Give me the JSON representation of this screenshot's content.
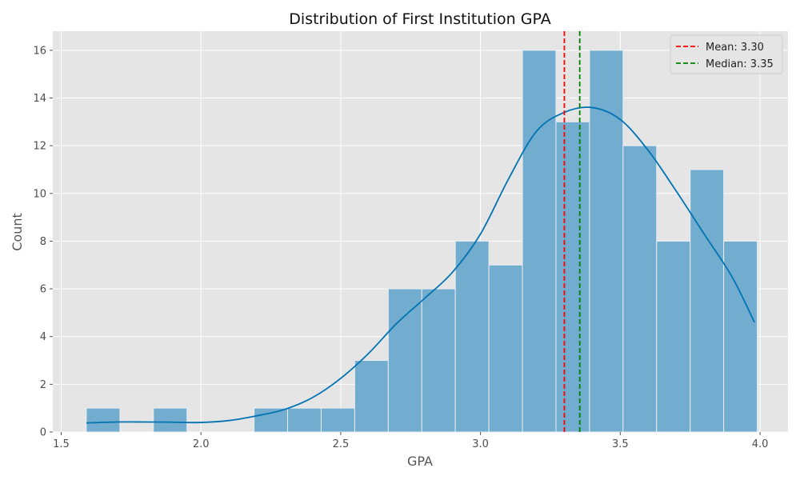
{
  "chart_data": {
    "type": "bar",
    "title": "Distribution of First Institution GPA",
    "xlabel": "GPA",
    "ylabel": "Count",
    "xlim": [
      1.47,
      4.1
    ],
    "ylim": [
      0,
      16.8
    ],
    "xticks": [
      1.5,
      2.0,
      2.5,
      3.0,
      3.5,
      4.0
    ],
    "xtick_labels": [
      "1.5",
      "2.0",
      "2.5",
      "3.0",
      "3.5",
      "4.0"
    ],
    "yticks": [
      0,
      2,
      4,
      6,
      8,
      10,
      12,
      14,
      16
    ],
    "ytick_labels": [
      "0",
      "2",
      "4",
      "6",
      "8",
      "10",
      "12",
      "14",
      "16"
    ],
    "grid": true,
    "bins": [
      {
        "x0": 1.59,
        "x1": 1.71,
        "count": 1
      },
      {
        "x0": 1.71,
        "x1": 1.83,
        "count": 0
      },
      {
        "x0": 1.83,
        "x1": 1.95,
        "count": 1
      },
      {
        "x0": 1.95,
        "x1": 2.07,
        "count": 0
      },
      {
        "x0": 2.07,
        "x1": 2.19,
        "count": 0
      },
      {
        "x0": 2.19,
        "x1": 2.31,
        "count": 1
      },
      {
        "x0": 2.31,
        "x1": 2.43,
        "count": 1
      },
      {
        "x0": 2.43,
        "x1": 2.55,
        "count": 1
      },
      {
        "x0": 2.55,
        "x1": 2.67,
        "count": 3
      },
      {
        "x0": 2.67,
        "x1": 2.79,
        "count": 6
      },
      {
        "x0": 2.79,
        "x1": 2.91,
        "count": 6
      },
      {
        "x0": 2.91,
        "x1": 3.03,
        "count": 8
      },
      {
        "x0": 3.03,
        "x1": 3.15,
        "count": 7
      },
      {
        "x0": 3.15,
        "x1": 3.27,
        "count": 16
      },
      {
        "x0": 3.27,
        "x1": 3.39,
        "count": 13
      },
      {
        "x0": 3.39,
        "x1": 3.51,
        "count": 16
      },
      {
        "x0": 3.51,
        "x1": 3.63,
        "count": 12
      },
      {
        "x0": 3.63,
        "x1": 3.75,
        "count": 8
      },
      {
        "x0": 3.75,
        "x1": 3.87,
        "count": 11
      },
      {
        "x0": 3.87,
        "x1": 3.99,
        "count": 8
      }
    ],
    "kde": [
      [
        1.59,
        0.38
      ],
      [
        1.7,
        0.42
      ],
      [
        1.8,
        0.42
      ],
      [
        1.9,
        0.41
      ],
      [
        2.0,
        0.4
      ],
      [
        2.1,
        0.48
      ],
      [
        2.2,
        0.68
      ],
      [
        2.3,
        0.95
      ],
      [
        2.4,
        1.45
      ],
      [
        2.5,
        2.25
      ],
      [
        2.6,
        3.3
      ],
      [
        2.7,
        4.55
      ],
      [
        2.8,
        5.6
      ],
      [
        2.9,
        6.7
      ],
      [
        3.0,
        8.3
      ],
      [
        3.1,
        10.6
      ],
      [
        3.2,
        12.6
      ],
      [
        3.3,
        13.4
      ],
      [
        3.4,
        13.6
      ],
      [
        3.5,
        13.1
      ],
      [
        3.6,
        11.8
      ],
      [
        3.7,
        10.1
      ],
      [
        3.8,
        8.3
      ],
      [
        3.9,
        6.5
      ],
      [
        3.98,
        4.6
      ]
    ],
    "bar_color": "#72acce",
    "kde_color": "#0173b2",
    "reference_lines": [
      {
        "label": "Mean: 3.30",
        "x": 3.3,
        "color": "#ff0000"
      },
      {
        "label": "Median: 3.35",
        "x": 3.355,
        "color": "#008000"
      }
    ],
    "legend_position": "top-right"
  }
}
